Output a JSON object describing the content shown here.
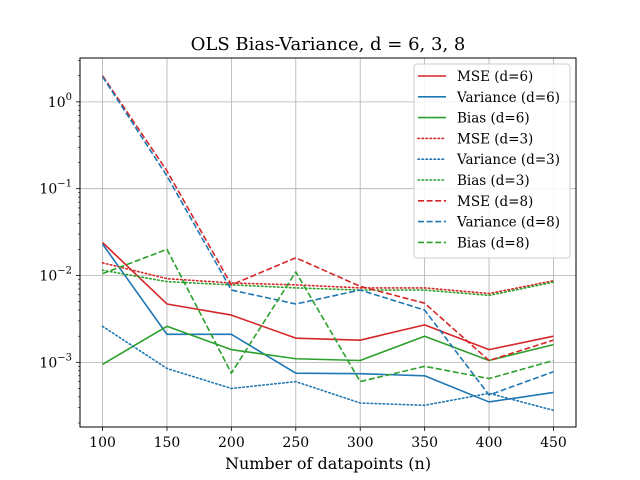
{
  "chart_data": {
    "type": "line",
    "title": "OLS Bias-Variance, d = 6, 3, 8",
    "xlabel": "Number of datapoints (n)",
    "ylabel": "",
    "x": [
      100,
      150,
      200,
      250,
      300,
      350,
      400,
      450
    ],
    "xlim": [
      82.5,
      467.5
    ],
    "ylim": [
      0.00018,
      3.2
    ],
    "yscale": "log",
    "x_ticks": [
      "100",
      "150",
      "200",
      "250",
      "300",
      "350",
      "400",
      "450"
    ],
    "y_ticks": [
      {
        "value": 0.001,
        "base": "10",
        "exp": "−3"
      },
      {
        "value": 0.01,
        "base": "10",
        "exp": "−2"
      },
      {
        "value": 0.1,
        "base": "10",
        "exp": "−1"
      },
      {
        "value": 1,
        "base": "10",
        "exp": "0"
      }
    ],
    "grid": true,
    "legend_position": "upper right",
    "series": [
      {
        "name": "MSE (d=6)",
        "color": "#d62728",
        "style": "solid",
        "values": [
          0.024,
          0.0047,
          0.0035,
          0.0019,
          0.0018,
          0.0027,
          0.0014,
          0.002
        ]
      },
      {
        "name": "Variance (d=6)",
        "color": "#1f77b4",
        "style": "solid",
        "values": [
          0.023,
          0.0021,
          0.0021,
          0.00075,
          0.00074,
          0.0007,
          0.00035,
          0.00045
        ]
      },
      {
        "name": "Bias (d=6)",
        "color": "#2ca02c",
        "style": "solid",
        "values": [
          0.00095,
          0.0026,
          0.0014,
          0.0011,
          0.00105,
          0.002,
          0.00105,
          0.0016
        ]
      },
      {
        "name": "MSE (d=3)",
        "color": "#d62728",
        "style": "dotted",
        "values": [
          0.014,
          0.0092,
          0.0082,
          0.0078,
          0.0072,
          0.0072,
          0.0062,
          0.0087
        ]
      },
      {
        "name": "Variance (d=3)",
        "color": "#1f77b4",
        "style": "dotted",
        "values": [
          0.0026,
          0.00085,
          0.0005,
          0.0006,
          0.00034,
          0.00032,
          0.00044,
          0.00028
        ]
      },
      {
        "name": "Bias (d=3)",
        "color": "#2ca02c",
        "style": "dotted",
        "values": [
          0.0115,
          0.0085,
          0.0078,
          0.0072,
          0.0068,
          0.0068,
          0.0059,
          0.0084
        ]
      },
      {
        "name": "MSE (d=8)",
        "color": "#d62728",
        "style": "dashed",
        "values": [
          2.0,
          0.16,
          0.0078,
          0.016,
          0.0075,
          0.0048,
          0.00105,
          0.0018
        ]
      },
      {
        "name": "Variance (d=8)",
        "color": "#1f77b4",
        "style": "dashed",
        "values": [
          1.95,
          0.14,
          0.0068,
          0.0047,
          0.0068,
          0.004,
          0.00042,
          0.00078
        ]
      },
      {
        "name": "Bias (d=8)",
        "color": "#2ca02c",
        "style": "dashed",
        "values": [
          0.0105,
          0.02,
          0.00075,
          0.011,
          0.0006,
          0.0009,
          0.00065,
          0.00105
        ]
      }
    ]
  }
}
